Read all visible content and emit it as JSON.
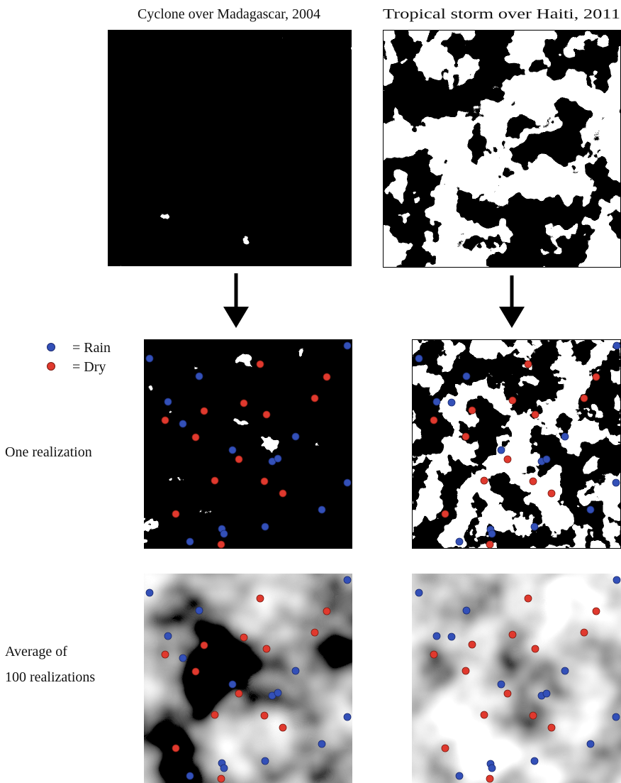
{
  "panels": {
    "left_title": "Cyclone over Madagascar, 2004",
    "right_title": "Tropical storm over Haiti, 2011"
  },
  "legend": {
    "rain": "= Rain",
    "dry": "= Dry"
  },
  "rows": {
    "realization": "One realization",
    "average": [
      "Average of",
      "100 realizations"
    ]
  }
}
